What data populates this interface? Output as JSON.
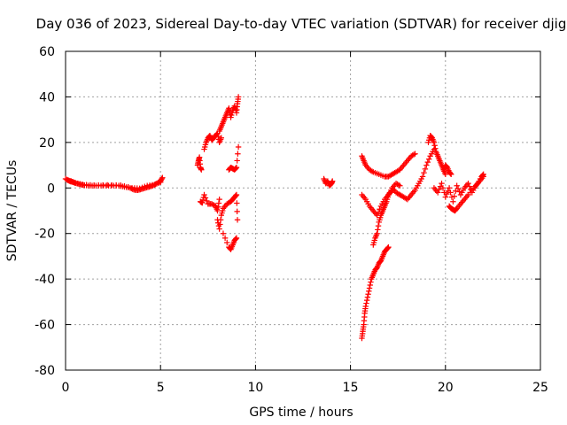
{
  "chart_data": {
    "type": "scatter",
    "title": "Day 036 of 2023, Sidereal Day-to-day VTEC variation (SDTVAR) for receiver djig",
    "xlabel": "GPS time / hours",
    "ylabel": "SDTVAR / TECUs",
    "xlim": [
      0,
      25
    ],
    "ylim": [
      -80,
      60
    ],
    "xticks": [
      0,
      5,
      10,
      15,
      20,
      25
    ],
    "yticks": [
      -80,
      -60,
      -40,
      -20,
      0,
      20,
      40,
      60
    ],
    "grid": true,
    "marker": "+",
    "marker_color": "#ff0000",
    "segments": [
      {
        "name": "early-flat",
        "x": [
          0.0,
          0.2,
          0.4,
          0.6,
          0.8,
          1.0,
          1.3,
          1.6,
          2.0,
          2.4,
          2.8,
          3.1,
          3.4,
          3.6,
          3.8,
          4.0,
          4.2,
          4.4,
          4.6,
          4.8,
          5.0,
          5.1
        ],
        "y": [
          4,
          3,
          2.5,
          2,
          1.5,
          1.2,
          1,
          1,
          1,
          1,
          1,
          0.5,
          0,
          -0.8,
          -1,
          -0.5,
          0,
          0.5,
          1,
          2,
          3,
          4.5
        ]
      },
      {
        "name": "early-flat-2",
        "x": [
          0.1,
          0.3,
          0.5,
          0.9,
          1.5,
          2.2,
          2.9,
          3.5,
          3.9,
          4.3,
          4.7,
          5.0
        ],
        "y": [
          3.5,
          3,
          2.2,
          1.5,
          1.2,
          1.3,
          1.2,
          0,
          -0.2,
          1,
          1.5,
          2.5
        ]
      },
      {
        "name": "seg-7a",
        "x": [
          6.95,
          7.0,
          7.05,
          7.1,
          7.15
        ],
        "y": [
          10,
          12,
          13.5,
          9,
          8
        ]
      },
      {
        "name": "seg-7b",
        "x": [
          7.3,
          7.4,
          7.5,
          7.6,
          7.7,
          7.8,
          7.9,
          8.0,
          8.1,
          8.2
        ],
        "y": [
          17,
          20,
          22,
          23,
          21,
          22,
          23,
          24,
          20,
          22
        ]
      },
      {
        "name": "seg-8-rise",
        "x": [
          8.1,
          8.2,
          8.3,
          8.4,
          8.5,
          8.6,
          8.7,
          8.8,
          8.9,
          9.0,
          9.05,
          9.1
        ],
        "y": [
          25,
          27,
          29,
          31,
          33,
          35,
          31,
          34,
          36,
          33,
          37,
          40
        ]
      },
      {
        "name": "seg-8-mid",
        "x": [
          8.6,
          8.7,
          8.8,
          8.9,
          9.0,
          9.1
        ],
        "y": [
          8,
          9,
          8.5,
          8,
          9,
          18
        ]
      },
      {
        "name": "seg-7-low",
        "x": [
          7.1,
          7.2,
          7.3,
          7.5,
          7.7,
          7.9,
          8.0,
          8.1
        ],
        "y": [
          -6,
          -6.5,
          -3,
          -7,
          -7,
          -8,
          -10,
          -5
        ]
      },
      {
        "name": "seg-8-neg",
        "x": [
          8.0,
          8.1,
          8.2,
          8.3,
          8.5,
          8.7,
          8.8,
          8.9,
          9.0,
          9.05
        ],
        "y": [
          -14,
          -18,
          -12,
          -9,
          -7,
          -6,
          -5,
          -4,
          -3,
          -14
        ]
      },
      {
        "name": "seg-8-low",
        "x": [
          8.3,
          8.6,
          8.7,
          8.8,
          8.9,
          9.0
        ],
        "y": [
          -20,
          -26,
          -27,
          -25,
          -23,
          -22
        ]
      },
      {
        "name": "seg-14",
        "x": [
          13.6,
          13.7,
          13.8,
          13.9,
          14.0,
          14.05
        ],
        "y": [
          4,
          2,
          3,
          1,
          2,
          3
        ]
      },
      {
        "name": "seg-16-deep",
        "x": [
          15.6,
          15.65,
          15.7,
          15.75,
          15.8,
          15.9,
          16.0,
          16.1,
          16.2,
          16.3,
          16.4,
          16.5,
          16.6,
          16.7,
          16.8,
          16.9,
          17.0
        ],
        "y": [
          -66,
          -63,
          -60,
          -55,
          -52,
          -48,
          -44,
          -40,
          -38,
          -36,
          -35,
          -33,
          -32,
          -30,
          -28,
          -27,
          -26
        ]
      },
      {
        "name": "seg-16-rise",
        "x": [
          16.2,
          16.3,
          16.4,
          16.5,
          16.6,
          16.7,
          16.8,
          16.9,
          17.0,
          17.1,
          17.2
        ],
        "y": [
          -25,
          -22,
          -20,
          -15,
          -12,
          -10,
          -8,
          -6,
          -3,
          -2,
          -1
        ]
      },
      {
        "name": "seg-16-v",
        "x": [
          15.6,
          15.8,
          16.0,
          16.2,
          16.4,
          16.6,
          16.8,
          17.0,
          17.2,
          17.4,
          17.6
        ],
        "y": [
          -3,
          -5,
          -8,
          -10,
          -12,
          -8,
          -5,
          -3,
          0,
          2,
          1
        ]
      },
      {
        "name": "seg-16-arc",
        "x": [
          15.6,
          15.7,
          15.8,
          16.0,
          16.2,
          16.5,
          16.8,
          17.0,
          17.2,
          17.4,
          17.6,
          17.8,
          18.0,
          18.2,
          18.4
        ],
        "y": [
          14,
          12,
          10,
          8,
          7,
          6,
          5,
          5,
          6,
          7,
          8,
          10,
          12,
          14,
          15
        ]
      },
      {
        "name": "seg-18-tangle",
        "x": [
          17.2,
          17.4,
          17.6,
          17.8,
          18.0,
          18.2,
          18.4,
          18.6,
          18.8,
          19.0,
          19.2,
          19.4
        ],
        "y": [
          0,
          -2,
          -3,
          -4,
          -5,
          -3,
          -1,
          2,
          5,
          10,
          14,
          17
        ]
      },
      {
        "name": "seg-19-peak",
        "x": [
          19.1,
          19.2,
          19.3,
          19.4,
          19.5,
          19.6,
          19.7,
          19.8,
          19.9,
          20.0
        ],
        "y": [
          20,
          23,
          22,
          20,
          16,
          14,
          12,
          10,
          8,
          6
        ]
      },
      {
        "name": "seg-20-cluster",
        "x": [
          19.4,
          19.6,
          19.8,
          20.0,
          20.2,
          20.4,
          20.6,
          20.8,
          21.0,
          21.2,
          21.4,
          21.6,
          21.8,
          22.0
        ],
        "y": [
          0,
          -2,
          2,
          -4,
          0,
          -6,
          1,
          -3,
          0,
          2,
          -2,
          1,
          3,
          5
        ]
      },
      {
        "name": "seg-20-hang",
        "x": [
          20.2,
          20.3,
          20.4,
          20.5,
          20.6,
          20.8,
          21.0,
          21.2,
          21.5,
          21.7,
          21.9,
          22.0
        ],
        "y": [
          -8,
          -9,
          -9.5,
          -10,
          -9,
          -7,
          -5,
          -3,
          0,
          2,
          5,
          6
        ]
      },
      {
        "name": "seg-20-upper",
        "x": [
          19.9,
          20.0,
          20.1,
          20.2,
          20.3
        ],
        "y": [
          8,
          10,
          9,
          7,
          6
        ]
      }
    ]
  }
}
